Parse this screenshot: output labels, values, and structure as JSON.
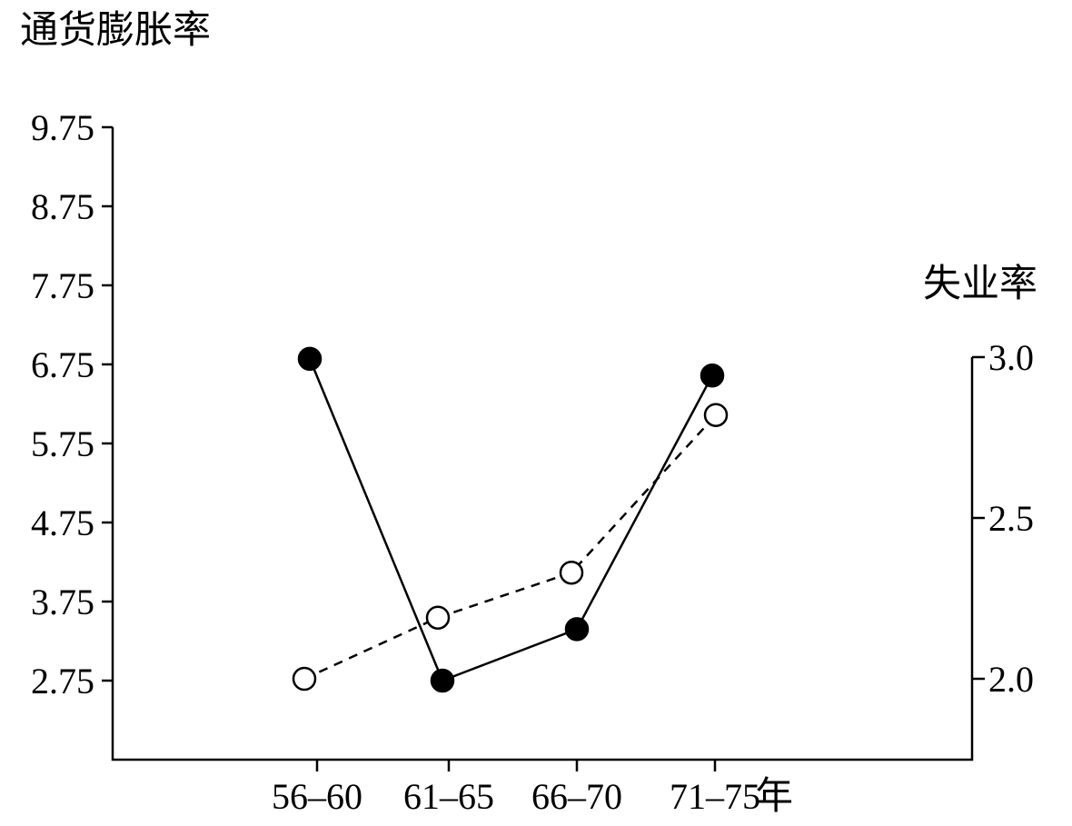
{
  "chart_data": {
    "type": "line",
    "left_axis_title": "通货膨胀率",
    "right_axis_title": "失业率",
    "x_year_suffix": "年",
    "categories": [
      "56–60",
      "61–65",
      "66–70",
      "71–75"
    ],
    "left_ticks": [
      "9.75",
      "8.75",
      "7.75",
      "6.75",
      "5.75",
      "4.75",
      "3.75",
      "2.75"
    ],
    "left_tick_values": [
      9.75,
      8.75,
      7.75,
      6.75,
      5.75,
      4.75,
      3.75,
      2.75
    ],
    "right_ticks": [
      "3.0",
      "2.5",
      "2.0"
    ],
    "right_tick_values": [
      3.0,
      2.5,
      2.0
    ],
    "left_ylim": [
      1.75,
      9.75
    ],
    "right_ylim": [
      1.75,
      3.0
    ],
    "series": [
      {
        "axis": "left",
        "marker": "filled",
        "line_style": "solid",
        "values": [
          6.82,
          2.75,
          3.4,
          6.61
        ]
      },
      {
        "axis": "right",
        "marker": "open",
        "line_style": "dashed",
        "values": [
          2.0,
          2.19,
          2.33,
          2.82
        ]
      }
    ],
    "grid": false,
    "colors": {
      "line": "#000000",
      "open_fill": "#ffffff",
      "filled_fill": "#000000"
    }
  }
}
